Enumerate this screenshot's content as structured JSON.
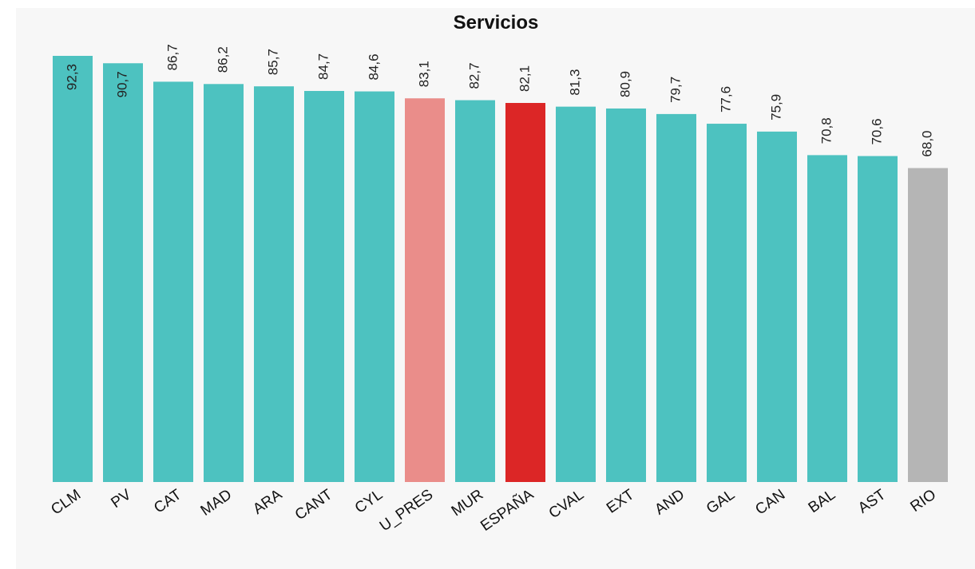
{
  "chart_data": {
    "type": "bar",
    "title": "Servicios",
    "categories": [
      "CLM",
      "PV",
      "CAT",
      "MAD",
      "ARA",
      "CANT",
      "CYL",
      "U_PRES",
      "MUR",
      "ESPAÑA",
      "CVAL",
      "EXT",
      "AND",
      "GAL",
      "CAN",
      "BAL",
      "AST",
      "RIO"
    ],
    "values": [
      92.3,
      90.7,
      86.7,
      86.2,
      85.7,
      84.7,
      84.6,
      83.1,
      82.7,
      82.1,
      81.3,
      80.9,
      79.7,
      77.6,
      75.9,
      70.8,
      70.6,
      68.0
    ],
    "value_labels": [
      "92,3",
      "90,7",
      "86,7",
      "86,2",
      "85,7",
      "84,7",
      "84,6",
      "83,1",
      "82,7",
      "82,1",
      "81,3",
      "80,9",
      "79,7",
      "77,6",
      "75,9",
      "70,8",
      "70,6",
      "68,0"
    ],
    "bar_colors": [
      "#4dc2c0",
      "#4dc2c0",
      "#4dc2c0",
      "#4dc2c0",
      "#4dc2c0",
      "#4dc2c0",
      "#4dc2c0",
      "#ea8d8a",
      "#4dc2c0",
      "#dc2626",
      "#4dc2c0",
      "#4dc2c0",
      "#4dc2c0",
      "#4dc2c0",
      "#4dc2c0",
      "#4dc2c0",
      "#4dc2c0",
      "#b5b5b5"
    ],
    "ylim": [
      0,
      92.3
    ],
    "grid": false,
    "legend": "none",
    "xlabel": "",
    "ylabel": ""
  }
}
